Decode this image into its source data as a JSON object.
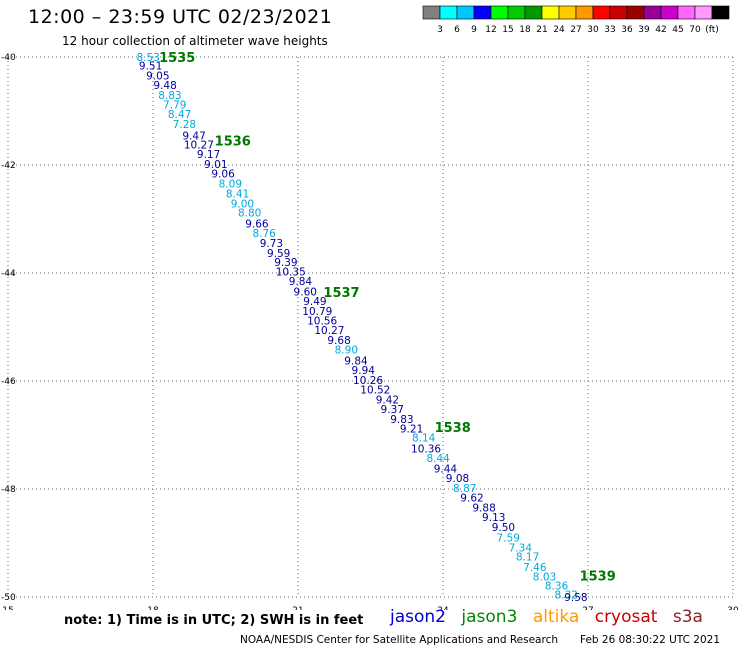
{
  "header": {
    "title": "12:00 – 23:59 UTC 02/23/2021",
    "subtitle": "12 hour collection of altimeter wave heights"
  },
  "colorbar": {
    "colors": [
      "#808080",
      "#00ffff",
      "#00c8ff",
      "#0000ff",
      "#00ff00",
      "#00cc00",
      "#009900",
      "#ffff00",
      "#ffcc00",
      "#ff9900",
      "#ff0000",
      "#cc0000",
      "#990000",
      "#990099",
      "#cc00cc",
      "#ff66ff",
      "#ff99ff",
      "#000000"
    ],
    "labels": [
      "3",
      "6",
      "9",
      "12",
      "15",
      "18",
      "21",
      "24",
      "27",
      "30",
      "33",
      "36",
      "39",
      "42",
      "45",
      "70",
      "(ft)"
    ]
  },
  "note": "note:  1) Time is in UTC;  2) SWH is in feet",
  "missions": [
    {
      "name": "jason2",
      "color": "#0000cc"
    },
    {
      "name": "jason3",
      "color": "#008800"
    },
    {
      "name": "altika",
      "color": "#ff9900"
    },
    {
      "name": "cryosat",
      "color": "#cc0000"
    },
    {
      "name": "s3a",
      "color": "#882222"
    }
  ],
  "footer": {
    "left": "NOAA/NESDIS Center for Satellite Applications and Research",
    "right": "Feb 26 08:30:22 UTC 2021"
  },
  "chart_data": {
    "type": "scatter",
    "title": "12:00 – 23:59 UTC 02/23/2021",
    "subtitle": "12 hour collection of altimeter wave heights",
    "xlim": [
      15,
      30
    ],
    "ylim": [
      -50,
      -40
    ],
    "xticks": [
      "15",
      "18",
      "21",
      "24",
      "27",
      "30"
    ],
    "yticks": [
      "-40",
      "-42",
      "-44",
      "-46",
      "-48",
      "-50"
    ],
    "grid": true,
    "colors": {
      "dark": "#000099",
      "light": "#00aadd",
      "hour": "#007700"
    },
    "points": [
      {
        "x": 17.9,
        "y": -40.0,
        "v": "8.53",
        "c": "light"
      },
      {
        "x": 17.95,
        "y": -40.16,
        "v": "9.51",
        "c": "dark"
      },
      {
        "x": 18.1,
        "y": -40.34,
        "v": "9.05",
        "c": "dark"
      },
      {
        "x": 18.25,
        "y": -40.52,
        "v": "9.48",
        "c": "dark"
      },
      {
        "x": 18.35,
        "y": -40.7,
        "v": "8.83",
        "c": "light"
      },
      {
        "x": 18.45,
        "y": -40.88,
        "v": "7.79",
        "c": "light"
      },
      {
        "x": 18.55,
        "y": -41.06,
        "v": "8.47",
        "c": "light"
      },
      {
        "x": 18.65,
        "y": -41.24,
        "v": "7.28",
        "c": "light"
      },
      {
        "x": 18.85,
        "y": -41.45,
        "v": "9.47",
        "c": "dark"
      },
      {
        "x": 18.95,
        "y": -41.62,
        "v": "10.27",
        "c": "dark"
      },
      {
        "x": 19.15,
        "y": -41.8,
        "v": "9.17",
        "c": "dark"
      },
      {
        "x": 19.3,
        "y": -41.98,
        "v": "9.01",
        "c": "dark"
      },
      {
        "x": 19.45,
        "y": -42.16,
        "v": "9.06",
        "c": "dark"
      },
      {
        "x": 19.6,
        "y": -42.34,
        "v": "8.09",
        "c": "light"
      },
      {
        "x": 19.75,
        "y": -42.53,
        "v": "8.41",
        "c": "light"
      },
      {
        "x": 19.85,
        "y": -42.71,
        "v": "9.00",
        "c": "light"
      },
      {
        "x": 20.0,
        "y": -42.88,
        "v": "8.80",
        "c": "light"
      },
      {
        "x": 20.15,
        "y": -43.08,
        "v": "9.66",
        "c": "dark"
      },
      {
        "x": 20.3,
        "y": -43.26,
        "v": "8.76",
        "c": "light"
      },
      {
        "x": 20.45,
        "y": -43.44,
        "v": "9.73",
        "c": "dark"
      },
      {
        "x": 20.6,
        "y": -43.63,
        "v": "9.59",
        "c": "dark"
      },
      {
        "x": 20.75,
        "y": -43.8,
        "v": "9.39",
        "c": "dark"
      },
      {
        "x": 20.85,
        "y": -43.97,
        "v": "10.35",
        "c": "dark"
      },
      {
        "x": 21.05,
        "y": -44.15,
        "v": "9.84",
        "c": "dark"
      },
      {
        "x": 21.15,
        "y": -44.34,
        "v": "9.60",
        "c": "dark"
      },
      {
        "x": 21.35,
        "y": -44.52,
        "v": "9.49",
        "c": "dark"
      },
      {
        "x": 21.4,
        "y": -44.7,
        "v": "10.79",
        "c": "dark"
      },
      {
        "x": 21.5,
        "y": -44.88,
        "v": "10.56",
        "c": "dark"
      },
      {
        "x": 21.65,
        "y": -45.06,
        "v": "10.27",
        "c": "dark"
      },
      {
        "x": 21.85,
        "y": -45.24,
        "v": "9.68",
        "c": "dark"
      },
      {
        "x": 22.0,
        "y": -45.42,
        "v": "8.90",
        "c": "light"
      },
      {
        "x": 22.2,
        "y": -45.62,
        "v": "9.84",
        "c": "dark"
      },
      {
        "x": 22.35,
        "y": -45.8,
        "v": "9.94",
        "c": "dark"
      },
      {
        "x": 22.45,
        "y": -45.98,
        "v": "10.26",
        "c": "dark"
      },
      {
        "x": 22.6,
        "y": -46.16,
        "v": "10.52",
        "c": "dark"
      },
      {
        "x": 22.85,
        "y": -46.34,
        "v": "9.42",
        "c": "dark"
      },
      {
        "x": 22.95,
        "y": -46.52,
        "v": "9.37",
        "c": "dark"
      },
      {
        "x": 23.15,
        "y": -46.7,
        "v": "9.83",
        "c": "dark"
      },
      {
        "x": 23.35,
        "y": -46.88,
        "v": "9.21",
        "c": "dark"
      },
      {
        "x": 23.6,
        "y": -47.05,
        "v": "8.14",
        "c": "light"
      },
      {
        "x": 23.65,
        "y": -47.25,
        "v": "10.36",
        "c": "dark"
      },
      {
        "x": 23.9,
        "y": -47.43,
        "v": "8.44",
        "c": "light"
      },
      {
        "x": 24.05,
        "y": -47.62,
        "v": "9.44",
        "c": "dark"
      },
      {
        "x": 24.3,
        "y": -47.8,
        "v": "9.08",
        "c": "dark"
      },
      {
        "x": 24.45,
        "y": -47.98,
        "v": "8.87",
        "c": "light"
      },
      {
        "x": 24.6,
        "y": -48.16,
        "v": "9.62",
        "c": "dark"
      },
      {
        "x": 24.85,
        "y": -48.34,
        "v": "9.88",
        "c": "dark"
      },
      {
        "x": 25.05,
        "y": -48.52,
        "v": "9.13",
        "c": "dark"
      },
      {
        "x": 25.25,
        "y": -48.7,
        "v": "9.50",
        "c": "dark"
      },
      {
        "x": 25.35,
        "y": -48.9,
        "v": "7.59",
        "c": "light"
      },
      {
        "x": 25.6,
        "y": -49.08,
        "v": "7.34",
        "c": "light"
      },
      {
        "x": 25.75,
        "y": -49.25,
        "v": "8.17",
        "c": "light"
      },
      {
        "x": 25.9,
        "y": -49.44,
        "v": "7.46",
        "c": "light"
      },
      {
        "x": 26.1,
        "y": -49.62,
        "v": "8.03",
        "c": "light"
      },
      {
        "x": 26.35,
        "y": -49.79,
        "v": "8.36",
        "c": "light"
      },
      {
        "x": 26.55,
        "y": -49.95,
        "v": "8.32",
        "c": "light"
      },
      {
        "x": 26.75,
        "y": -50.0,
        "v": "9.58",
        "c": "dark"
      }
    ],
    "hour_labels": [
      {
        "x": 18.5,
        "y": -40.0,
        "v": "1535"
      },
      {
        "x": 19.65,
        "y": -41.55,
        "v": "1536"
      },
      {
        "x": 21.9,
        "y": -44.35,
        "v": "1537"
      },
      {
        "x": 24.2,
        "y": -46.85,
        "v": "1538"
      },
      {
        "x": 27.2,
        "y": -49.6,
        "v": "1539"
      }
    ]
  }
}
